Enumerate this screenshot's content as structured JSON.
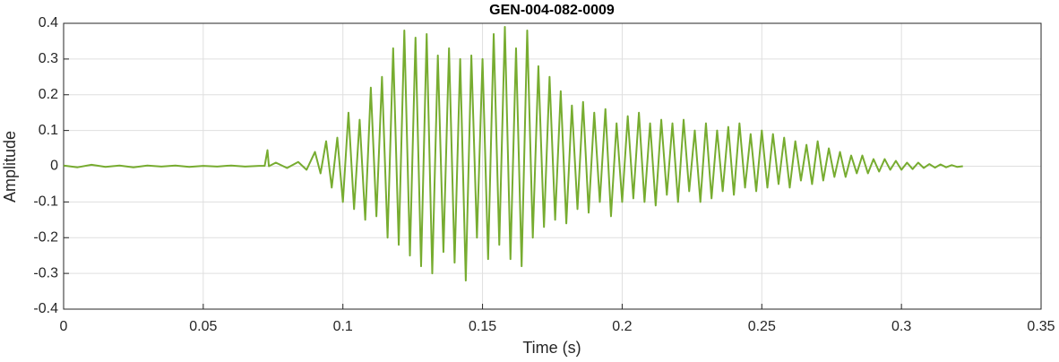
{
  "chart_data": {
    "type": "line",
    "title": "GEN-004-082-0009",
    "xlabel": "Time (s)",
    "ylabel": "Amplitude",
    "xlim": [
      0,
      0.35
    ],
    "xticks": [
      0,
      0.05,
      0.1,
      0.15,
      0.2,
      0.25,
      0.3,
      0.35
    ],
    "ylim": [
      -0.4,
      0.4
    ],
    "yticks": [
      -0.4,
      -0.3,
      -0.2,
      -0.1,
      0,
      0.1,
      0.2,
      0.3,
      0.4
    ],
    "grid": true,
    "series": [
      {
        "name": "Amplitude",
        "color": "#77ac30",
        "x": [
          0,
          0.005,
          0.01,
          0.015,
          0.02,
          0.025,
          0.03,
          0.035,
          0.04,
          0.045,
          0.05,
          0.055,
          0.06,
          0.065,
          0.07,
          0.072,
          0.073,
          0.0735,
          0.076,
          0.08,
          0.084,
          0.087,
          0.09,
          0.092,
          0.094,
          0.096,
          0.098,
          0.1,
          0.102,
          0.104,
          0.106,
          0.108,
          0.11,
          0.112,
          0.114,
          0.116,
          0.118,
          0.12,
          0.122,
          0.124,
          0.126,
          0.128,
          0.13,
          0.132,
          0.134,
          0.136,
          0.138,
          0.14,
          0.142,
          0.144,
          0.146,
          0.148,
          0.15,
          0.152,
          0.154,
          0.156,
          0.158,
          0.16,
          0.162,
          0.164,
          0.166,
          0.168,
          0.17,
          0.172,
          0.174,
          0.176,
          0.178,
          0.18,
          0.182,
          0.184,
          0.186,
          0.188,
          0.19,
          0.192,
          0.194,
          0.196,
          0.198,
          0.2,
          0.202,
          0.204,
          0.206,
          0.208,
          0.21,
          0.212,
          0.214,
          0.216,
          0.218,
          0.22,
          0.222,
          0.224,
          0.226,
          0.228,
          0.23,
          0.232,
          0.234,
          0.236,
          0.238,
          0.24,
          0.242,
          0.244,
          0.246,
          0.248,
          0.25,
          0.252,
          0.254,
          0.256,
          0.258,
          0.26,
          0.262,
          0.264,
          0.266,
          0.268,
          0.27,
          0.272,
          0.274,
          0.276,
          0.278,
          0.28,
          0.282,
          0.284,
          0.286,
          0.288,
          0.29,
          0.292,
          0.294,
          0.296,
          0.298,
          0.3,
          0.302,
          0.304,
          0.306,
          0.308,
          0.31,
          0.312,
          0.314,
          0.316,
          0.318,
          0.32,
          0.322
        ],
        "values": [
          0.002,
          -0.003,
          0.004,
          -0.002,
          0.002,
          -0.003,
          0.002,
          -0.001,
          0.002,
          -0.002,
          0.001,
          -0.001,
          0.002,
          -0.001,
          0.001,
          0.001,
          0.045,
          0.0,
          0.01,
          -0.005,
          0.012,
          -0.01,
          0.04,
          -0.02,
          0.07,
          -0.06,
          0.08,
          -0.1,
          0.15,
          -0.12,
          0.13,
          -0.15,
          0.22,
          -0.14,
          0.25,
          -0.2,
          0.33,
          -0.22,
          0.38,
          -0.25,
          0.36,
          -0.28,
          0.37,
          -0.3,
          0.31,
          -0.24,
          0.33,
          -0.27,
          0.3,
          -0.32,
          0.31,
          -0.2,
          0.3,
          -0.26,
          0.37,
          -0.22,
          0.39,
          -0.26,
          0.33,
          -0.28,
          0.38,
          -0.2,
          0.28,
          -0.17,
          0.25,
          -0.15,
          0.21,
          -0.16,
          0.17,
          -0.12,
          0.18,
          -0.13,
          0.15,
          -0.1,
          0.16,
          -0.14,
          0.12,
          -0.1,
          0.14,
          -0.09,
          0.15,
          -0.1,
          0.12,
          -0.11,
          0.13,
          -0.08,
          0.12,
          -0.1,
          0.13,
          -0.07,
          0.1,
          -0.1,
          0.12,
          -0.09,
          0.1,
          -0.07,
          0.11,
          -0.08,
          0.12,
          -0.06,
          0.09,
          -0.07,
          0.1,
          -0.06,
          0.09,
          -0.05,
          0.08,
          -0.06,
          0.07,
          -0.04,
          0.06,
          -0.05,
          0.07,
          -0.04,
          0.05,
          -0.03,
          0.04,
          -0.03,
          0.03,
          -0.02,
          0.03,
          -0.02,
          0.02,
          -0.015,
          0.02,
          -0.01,
          0.015,
          -0.01,
          0.01,
          -0.008,
          0.01,
          -0.005,
          0.006,
          -0.004,
          0.005,
          -0.003,
          0.003,
          -0.002,
          0
        ]
      }
    ]
  }
}
